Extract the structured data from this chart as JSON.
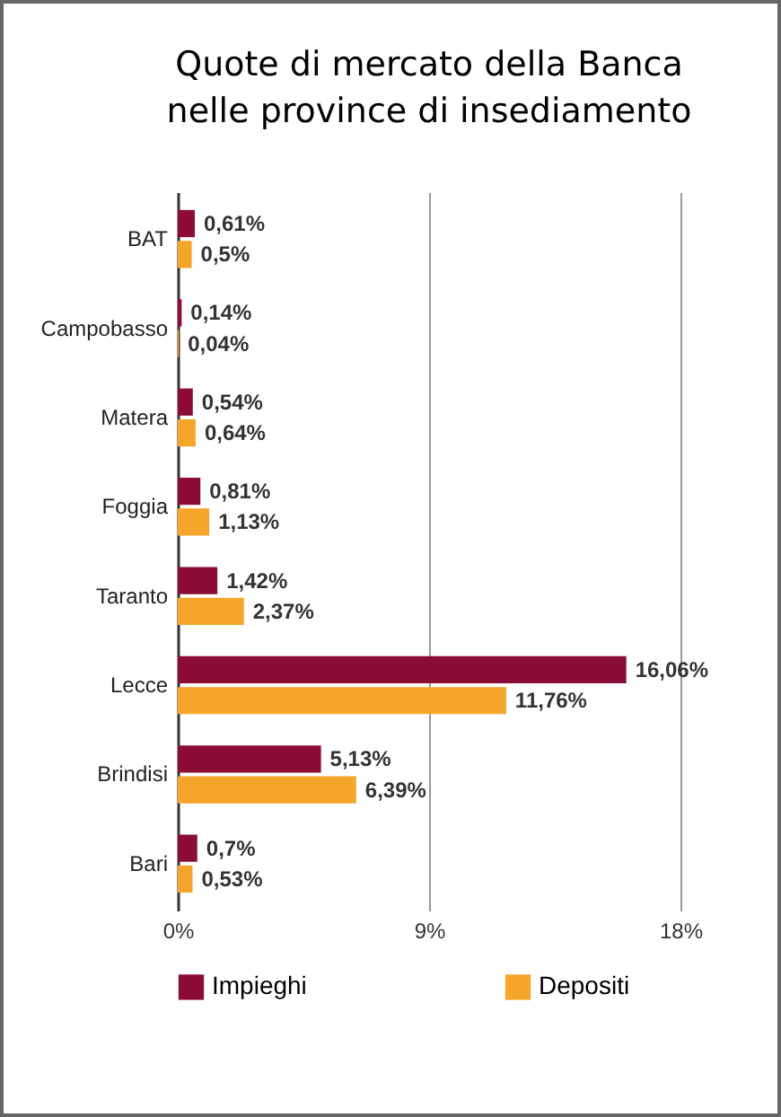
{
  "chart_data": {
    "type": "bar",
    "orientation": "horizontal",
    "title": "Quote di mercato della Banca\nnelle province di insediamento",
    "categories": [
      "BAT",
      "Campobasso",
      "Matera",
      "Foggia",
      "Taranto",
      "Lecce",
      "Brindisi",
      "Bari"
    ],
    "series": [
      {
        "name": "Impieghi",
        "color": "#8b0d36",
        "values": [
          0.61,
          0.14,
          0.54,
          0.81,
          1.42,
          16.06,
          5.13,
          0.7
        ],
        "value_labels": [
          "0,61%",
          "0,14%",
          "0,54%",
          "0,81%",
          "1,42%",
          "16,06%",
          "5,13%",
          "0,7%"
        ]
      },
      {
        "name": "Depositi",
        "color": "#f5a52a",
        "values": [
          0.5,
          0.04,
          0.64,
          1.13,
          2.37,
          11.76,
          6.39,
          0.53
        ],
        "value_labels": [
          "0,5%",
          "0,04%",
          "0,64%",
          "1,13%",
          "2,37%",
          "11,76%",
          "6,39%",
          "0,53%"
        ]
      }
    ],
    "xlim": [
      0,
      18
    ],
    "xticks": [
      {
        "value": 0,
        "label": "0%"
      },
      {
        "value": 9,
        "label": "9%"
      },
      {
        "value": 18,
        "label": "18%"
      }
    ],
    "grid": "x",
    "legend": "bottom"
  }
}
